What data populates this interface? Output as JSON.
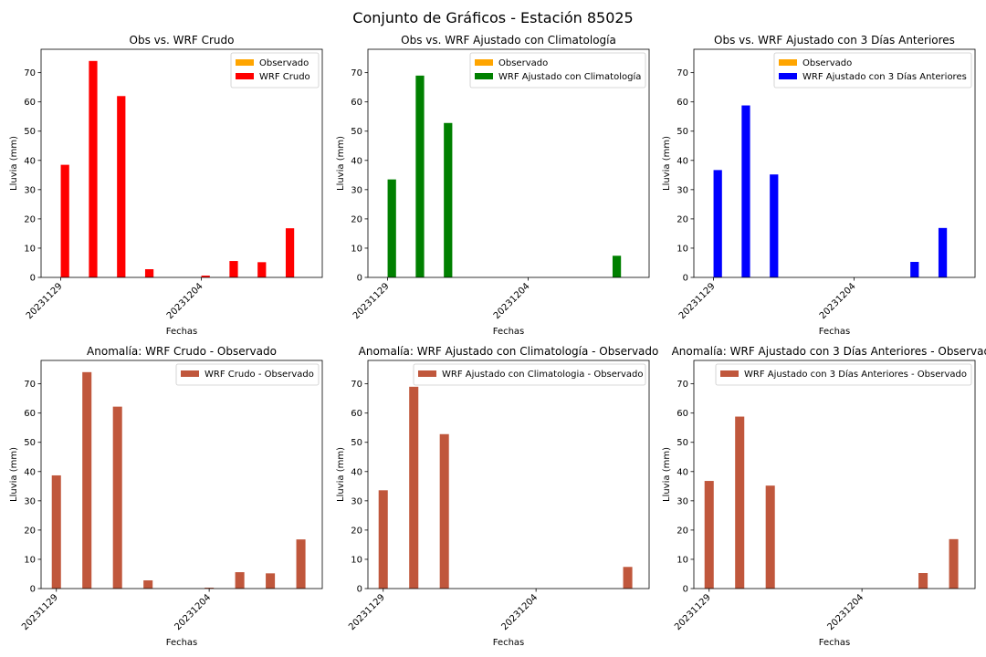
{
  "figure": {
    "title": "Conjunto de Gráficos - Estación 85025"
  },
  "chart_data": [
    {
      "type": "bar",
      "title": "Obs vs. WRF Crudo",
      "xlabel": "Fechas",
      "ylabel": "Lluvia (mm)",
      "ylim": [
        0,
        78
      ],
      "yticks": [
        0,
        10,
        20,
        30,
        40,
        50,
        60,
        70
      ],
      "xlim": [
        -0.7,
        9.3
      ],
      "x": [
        0,
        1,
        2,
        3,
        4,
        5,
        6,
        7,
        8
      ],
      "xticks": [
        0,
        5
      ],
      "xtick_labels": [
        "20231129",
        "20231204"
      ],
      "series": [
        {
          "name": "Observado",
          "color": "#ffa500",
          "values": [
            0,
            0,
            0,
            0,
            0,
            0,
            0,
            0,
            0
          ]
        },
        {
          "name": "WRF Crudo",
          "color": "#ff0000",
          "values": [
            38.5,
            74,
            62,
            2.8,
            0,
            0.6,
            5.6,
            5.2,
            16.8
          ]
        }
      ],
      "legend": "top-right"
    },
    {
      "type": "bar",
      "title": "Obs vs. WRF Ajustado con Climatología",
      "xlabel": "Fechas",
      "ylabel": "Lluvia (mm)",
      "ylim": [
        0,
        78
      ],
      "yticks": [
        0,
        10,
        20,
        30,
        40,
        50,
        60,
        70
      ],
      "xlim": [
        -0.7,
        9.3
      ],
      "x": [
        0,
        1,
        2,
        3,
        4,
        5,
        6,
        7,
        8
      ],
      "xticks": [
        0,
        5
      ],
      "xtick_labels": [
        "20231129",
        "20231204"
      ],
      "series": [
        {
          "name": "Observado",
          "color": "#ffa500",
          "values": [
            0,
            0,
            0,
            0,
            0,
            0,
            0,
            0,
            0
          ]
        },
        {
          "name": "WRF Ajustado con Climatología",
          "color": "#008000",
          "values": [
            33.5,
            69,
            52.8,
            0,
            0,
            0,
            0,
            0,
            7.4
          ]
        }
      ],
      "legend": "top-right"
    },
    {
      "type": "bar",
      "title": "Obs vs. WRF Ajustado con 3 Días Anteriores",
      "xlabel": "Fechas",
      "ylabel": "Lluvia (mm)",
      "ylim": [
        0,
        78
      ],
      "yticks": [
        0,
        10,
        20,
        30,
        40,
        50,
        60,
        70
      ],
      "xlim": [
        -0.7,
        9.3
      ],
      "x": [
        0,
        1,
        2,
        3,
        4,
        5,
        6,
        7,
        8
      ],
      "xticks": [
        0,
        5
      ],
      "xtick_labels": [
        "20231129",
        "20231204"
      ],
      "series": [
        {
          "name": "Observado",
          "color": "#ffa500",
          "values": [
            0,
            0,
            0,
            0,
            0,
            0,
            0,
            0,
            0
          ]
        },
        {
          "name": "WRF Ajustado con 3 Días Anteriores",
          "color": "#0000ff",
          "values": [
            36.7,
            58.8,
            35.2,
            0,
            0,
            0,
            0,
            5.3,
            16.9
          ]
        }
      ],
      "legend": "top-right"
    },
    {
      "type": "bar",
      "title": "Anomalía: WRF Crudo - Observado",
      "xlabel": "Fechas",
      "ylabel": "Lluvia (mm)",
      "ylim": [
        0,
        78
      ],
      "yticks": [
        0,
        10,
        20,
        30,
        40,
        50,
        60,
        70
      ],
      "xlim": [
        -0.5,
        8.7
      ],
      "x": [
        0,
        1,
        2,
        3,
        4,
        5,
        6,
        7,
        8
      ],
      "xticks": [
        0,
        5
      ],
      "xtick_labels": [
        "20231129",
        "20231204"
      ],
      "series": [
        {
          "name": "WRF Crudo - Observado",
          "color": "#c0573c",
          "values": [
            38.7,
            74,
            62.2,
            2.8,
            0,
            0.3,
            5.6,
            5.2,
            16.8
          ]
        }
      ],
      "legend": "top-right"
    },
    {
      "type": "bar",
      "title": "Anomalía: WRF Ajustado con Climatología - Observado",
      "xlabel": "Fechas",
      "ylabel": "Lluvia (mm)",
      "ylim": [
        0,
        78
      ],
      "yticks": [
        0,
        10,
        20,
        30,
        40,
        50,
        60,
        70
      ],
      "xlim": [
        -0.5,
        8.7
      ],
      "x": [
        0,
        1,
        2,
        3,
        4,
        5,
        6,
        7,
        8
      ],
      "xticks": [
        0,
        5
      ],
      "xtick_labels": [
        "20231129",
        "20231204"
      ],
      "series": [
        {
          "name": "WRF Ajustado con Climatologia - Observado",
          "color": "#c0573c",
          "values": [
            33.6,
            69,
            52.8,
            0,
            0,
            0,
            0,
            0,
            7.4
          ]
        }
      ],
      "legend": "top-right"
    },
    {
      "type": "bar",
      "title": "Anomalía: WRF Ajustado con 3 Días Anteriores - Observado",
      "xlabel": "Fechas",
      "ylabel": "Lluvia (mm)",
      "ylim": [
        0,
        78
      ],
      "yticks": [
        0,
        10,
        20,
        30,
        40,
        50,
        60,
        70
      ],
      "xlim": [
        -0.5,
        8.7
      ],
      "x": [
        0,
        1,
        2,
        3,
        4,
        5,
        6,
        7,
        8
      ],
      "xticks": [
        0,
        5
      ],
      "xtick_labels": [
        "20231129",
        "20231204"
      ],
      "series": [
        {
          "name": "WRF Ajustado con 3 Días Anteriores - Observado",
          "color": "#c0573c",
          "values": [
            36.8,
            58.8,
            35.2,
            0,
            0,
            0,
            0,
            5.3,
            16.9
          ]
        }
      ],
      "legend": "top-right"
    }
  ]
}
